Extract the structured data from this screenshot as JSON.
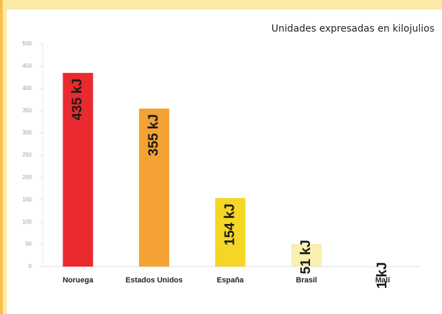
{
  "chart_data": {
    "type": "bar",
    "annotation": "Unidades expresadas en kilojulios",
    "categories": [
      "Noruega",
      "Estados Unidos",
      "España",
      "Brasil",
      "Malí"
    ],
    "values": [
      435,
      355,
      154,
      51,
      1
    ],
    "value_labels": [
      "435 kJ",
      "355 kJ",
      "154 kJ",
      "51 kJ",
      "1 kJ"
    ],
    "colors": [
      "#ea2a2e",
      "#f5a234",
      "#f4d626",
      "#f8efb0",
      "#fbf3c8"
    ],
    "ylim": [
      0,
      500
    ],
    "yticks": [
      0,
      50,
      100,
      150,
      200,
      250,
      300,
      350,
      400,
      450,
      500
    ],
    "grid": false
  }
}
